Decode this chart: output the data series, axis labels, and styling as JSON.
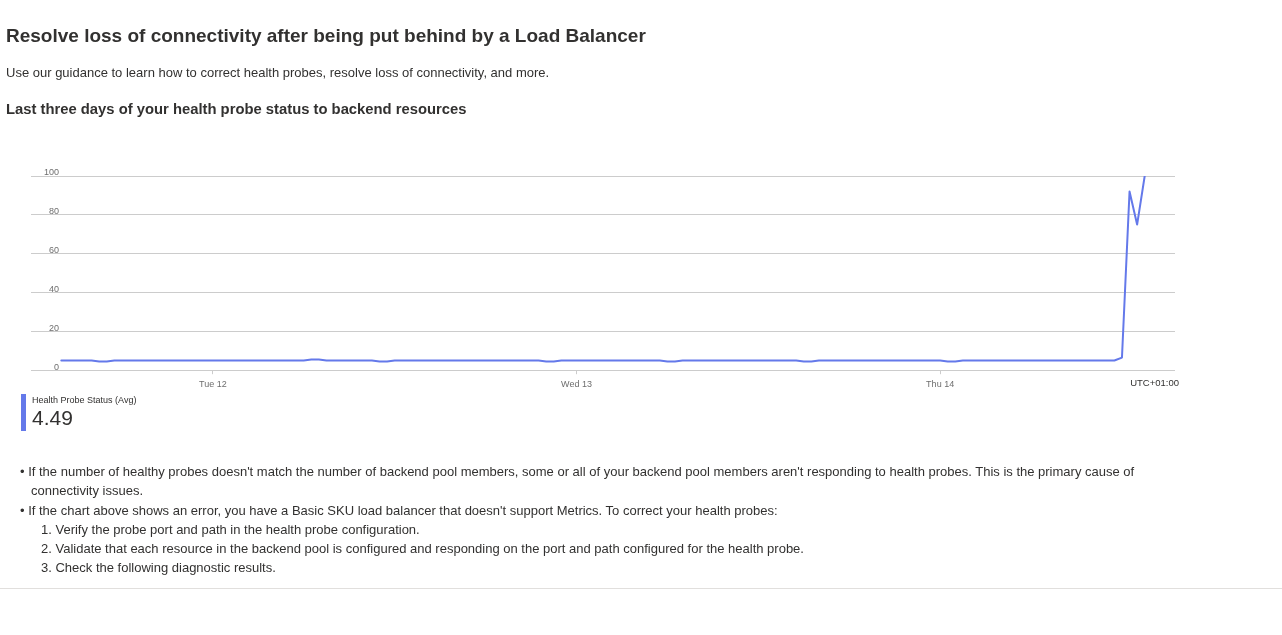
{
  "chart_data": {
    "type": "line",
    "title": "Resolve loss of connectivity after being put behind by a Load Balancer",
    "subtitle": "Use our guidance to learn how to correct health probes, resolve loss of connectivity, and more.",
    "xlabel": "UTC+01:00",
    "categories": [
      null,
      null,
      null,
      null,
      null,
      null,
      null,
      null,
      null,
      null,
      null,
      null,
      null,
      null,
      null,
      null,
      null,
      null,
      null,
      null,
      null,
      null,
      null,
      null,
      "Tue 12",
      null,
      null,
      null,
      null,
      null,
      null,
      null,
      null,
      null,
      null,
      null,
      null,
      null,
      null,
      null,
      null,
      null,
      null,
      null,
      null,
      null,
      null,
      null,
      null,
      null,
      null,
      null,
      null,
      null,
      null,
      null,
      null,
      null,
      null,
      null,
      null,
      null,
      null,
      null,
      null,
      null,
      null,
      null,
      null,
      null,
      null,
      null,
      "Wed 13",
      null,
      null,
      null,
      null,
      null,
      null,
      null,
      null,
      null,
      null,
      null,
      null,
      null,
      null,
      null,
      null,
      null,
      null,
      null,
      null,
      null,
      null,
      null,
      null,
      null,
      null,
      null,
      null,
      null,
      null,
      null,
      null,
      null,
      null,
      null,
      null,
      null,
      null,
      null,
      null,
      null,
      null,
      null,
      null,
      null,
      null,
      null,
      "Thu 14",
      null,
      null,
      null,
      null,
      null,
      null,
      null,
      null,
      null,
      null,
      null,
      null,
      null,
      null,
      null,
      null,
      null,
      null,
      null,
      null,
      null,
      null,
      null,
      null,
      null,
      null,
      null,
      null,
      null,
      null,
      null
    ],
    "series": [
      {
        "name": "Health Probe Status (Avg)",
        "color": "#6479ea",
        "values": [
          null,
          null,
          null,
          null,
          5,
          5,
          5,
          5,
          5,
          4.5,
          4.5,
          5,
          5,
          5,
          5,
          5,
          5,
          5,
          5,
          5,
          5,
          5,
          5,
          5,
          5,
          5,
          5,
          5,
          5,
          5,
          5,
          5,
          5,
          5,
          5,
          5,
          5,
          5.5,
          5.5,
          5,
          5,
          5,
          5,
          5,
          5,
          5,
          4.5,
          4.5,
          5,
          5,
          5,
          5,
          5,
          5,
          5,
          5,
          5,
          5,
          5,
          5,
          5,
          5,
          5,
          5,
          5,
          5,
          5,
          5,
          4.5,
          4.5,
          5,
          5,
          5,
          5,
          5,
          5,
          5,
          5,
          5,
          5,
          5,
          5,
          5,
          5,
          4.5,
          4.5,
          5,
          5,
          5,
          5,
          5,
          5,
          5,
          5,
          5,
          5,
          5,
          5,
          5,
          5,
          5,
          5,
          4.5,
          4.5,
          5,
          5,
          5,
          5,
          5,
          5,
          5,
          5,
          5,
          5,
          5,
          5,
          5,
          5,
          5,
          5,
          5,
          4.5,
          4.5,
          5,
          5,
          5,
          5,
          5,
          5,
          5,
          5,
          5,
          5,
          5,
          5,
          5,
          5,
          5,
          5,
          5,
          5,
          5,
          5,
          5,
          6.5,
          92,
          75,
          100,
          null,
          null,
          null,
          null
        ]
      }
    ],
    "ylim": [
      0,
      100
    ],
    "yticks": [
      0,
      20,
      40,
      60,
      80,
      100
    ],
    "grid": "y",
    "legend": "bottom left",
    "marker": "none",
    "annotations": [
      "Last three days of your health probe status to backend resources",
      "4.49",
      "• If the number of healthy probes doesn't match the number of backend pool members, some or all of your backend pool members aren't responding to health probes. This is the primary cause of connectivity issues.",
      "• If the chart above shows an error, you have a Basic SKU load balancer that doesn't support Metrics. To correct your health probes:",
      "1. Verify the probe port and path in the health probe configuration.",
      "2. Validate that each resource in the backend pool is configured and responding on the port and path configured for the health probe.",
      "3. Check the following diagnostic results."
    ]
  }
}
